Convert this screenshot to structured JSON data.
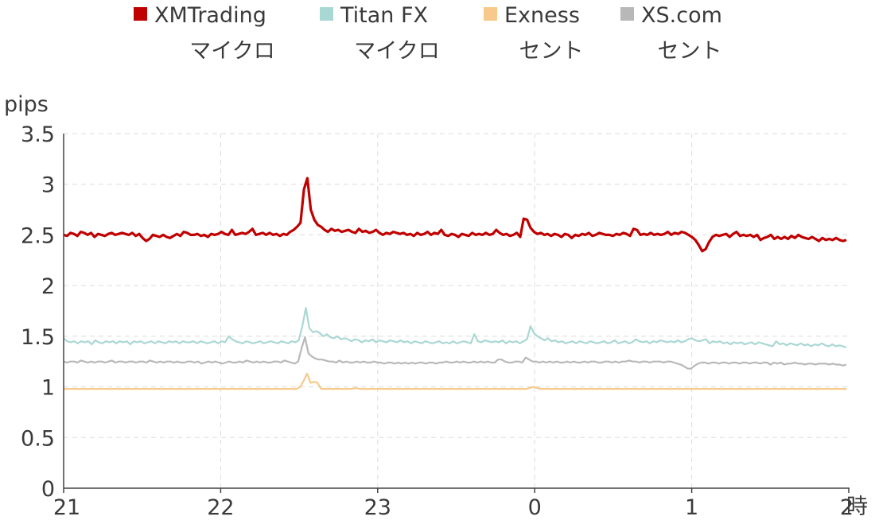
{
  "chart_data": {
    "type": "line",
    "ylabel": "pips",
    "xunit": "時",
    "ylim": [
      0,
      3.5
    ],
    "yticks": [
      "0",
      "0.5",
      "1",
      "1.5",
      "2",
      "2.5",
      "3",
      "3.5"
    ],
    "xticks": [
      "21",
      "22",
      "23",
      "0",
      "1",
      "2"
    ],
    "legend_position": "top",
    "grid": true,
    "series": [
      {
        "name": [
          "XMTrading",
          "マイクロ"
        ],
        "color": "#c00000",
        "values": [
          2.5,
          2.49,
          2.52,
          2.51,
          2.49,
          2.53,
          2.52,
          2.5,
          2.52,
          2.48,
          2.51,
          2.5,
          2.49,
          2.51,
          2.52,
          2.5,
          2.51,
          2.52,
          2.51,
          2.5,
          2.52,
          2.49,
          2.51,
          2.47,
          2.44,
          2.46,
          2.5,
          2.49,
          2.48,
          2.5,
          2.48,
          2.47,
          2.49,
          2.51,
          2.49,
          2.53,
          2.52,
          2.5,
          2.5,
          2.51,
          2.49,
          2.5,
          2.48,
          2.51,
          2.5,
          2.51,
          2.53,
          2.51,
          2.5,
          2.55,
          2.5,
          2.51,
          2.52,
          2.51,
          2.53,
          2.56,
          2.5,
          2.51,
          2.52,
          2.5,
          2.52,
          2.5,
          2.51,
          2.49,
          2.51,
          2.5,
          2.53,
          2.55,
          2.58,
          2.62,
          2.95,
          3.06,
          2.75,
          2.65,
          2.6,
          2.58,
          2.55,
          2.53,
          2.56,
          2.54,
          2.55,
          2.53,
          2.54,
          2.55,
          2.53,
          2.52,
          2.56,
          2.53,
          2.54,
          2.52,
          2.53,
          2.55,
          2.52,
          2.5,
          2.52,
          2.51,
          2.53,
          2.52,
          2.51,
          2.52,
          2.5,
          2.51,
          2.49,
          2.52,
          2.5,
          2.51,
          2.53,
          2.5,
          2.52,
          2.51,
          2.55,
          2.5,
          2.49,
          2.51,
          2.5,
          2.48,
          2.51,
          2.5,
          2.49,
          2.52,
          2.5,
          2.51,
          2.5,
          2.52,
          2.5,
          2.51,
          2.55,
          2.52,
          2.5,
          2.51,
          2.49,
          2.5,
          2.52,
          2.48,
          2.66,
          2.65,
          2.57,
          2.53,
          2.51,
          2.52,
          2.5,
          2.51,
          2.49,
          2.51,
          2.5,
          2.48,
          2.51,
          2.5,
          2.47,
          2.5,
          2.49,
          2.51,
          2.5,
          2.52,
          2.49,
          2.5,
          2.52,
          2.51,
          2.5,
          2.5,
          2.49,
          2.51,
          2.5,
          2.52,
          2.51,
          2.49,
          2.56,
          2.55,
          2.5,
          2.51,
          2.5,
          2.52,
          2.5,
          2.51,
          2.5,
          2.51,
          2.53,
          2.5,
          2.52,
          2.51,
          2.53,
          2.52,
          2.5,
          2.48,
          2.45,
          2.4,
          2.34,
          2.36,
          2.43,
          2.48,
          2.5,
          2.49,
          2.5,
          2.51,
          2.48,
          2.51,
          2.53,
          2.49,
          2.5,
          2.49,
          2.5,
          2.48,
          2.5,
          2.45,
          2.47,
          2.48,
          2.5,
          2.46,
          2.48,
          2.46,
          2.48,
          2.46,
          2.49,
          2.47,
          2.5,
          2.48,
          2.47,
          2.46,
          2.48,
          2.46,
          2.44,
          2.47,
          2.45,
          2.46,
          2.45,
          2.47,
          2.45,
          2.44,
          2.45
        ]
      },
      {
        "name": [
          "Titan FX",
          "マイクロ"
        ],
        "color": "#a9d8d4",
        "values": [
          1.48,
          1.45,
          1.44,
          1.45,
          1.43,
          1.45,
          1.44,
          1.45,
          1.42,
          1.46,
          1.44,
          1.43,
          1.45,
          1.44,
          1.45,
          1.43,
          1.45,
          1.44,
          1.45,
          1.42,
          1.45,
          1.44,
          1.45,
          1.43,
          1.44,
          1.45,
          1.43,
          1.45,
          1.44,
          1.43,
          1.45,
          1.44,
          1.45,
          1.43,
          1.45,
          1.44,
          1.44,
          1.45,
          1.43,
          1.45,
          1.44,
          1.43,
          1.44,
          1.45,
          1.43,
          1.45,
          1.44,
          1.5,
          1.47,
          1.45,
          1.44,
          1.43,
          1.45,
          1.44,
          1.43,
          1.44,
          1.45,
          1.43,
          1.44,
          1.45,
          1.44,
          1.43,
          1.45,
          1.44,
          1.43,
          1.45,
          1.44,
          1.46,
          1.6,
          1.78,
          1.58,
          1.54,
          1.55,
          1.53,
          1.5,
          1.52,
          1.49,
          1.48,
          1.5,
          1.47,
          1.48,
          1.47,
          1.45,
          1.47,
          1.46,
          1.44,
          1.46,
          1.45,
          1.47,
          1.44,
          1.46,
          1.45,
          1.44,
          1.46,
          1.45,
          1.44,
          1.46,
          1.44,
          1.45,
          1.43,
          1.45,
          1.44,
          1.43,
          1.45,
          1.44,
          1.43,
          1.44,
          1.45,
          1.43,
          1.44,
          1.43,
          1.45,
          1.43,
          1.44,
          1.45,
          1.44,
          1.43,
          1.52,
          1.45,
          1.44,
          1.46,
          1.45,
          1.44,
          1.45,
          1.44,
          1.46,
          1.43,
          1.45,
          1.44,
          1.45,
          1.43,
          1.45,
          1.47,
          1.6,
          1.53,
          1.5,
          1.48,
          1.46,
          1.48,
          1.45,
          1.46,
          1.44,
          1.45,
          1.43,
          1.44,
          1.45,
          1.43,
          1.45,
          1.44,
          1.43,
          1.45,
          1.44,
          1.43,
          1.44,
          1.45,
          1.43,
          1.44,
          1.46,
          1.43,
          1.44,
          1.45,
          1.43,
          1.44,
          1.47,
          1.45,
          1.44,
          1.45,
          1.43,
          1.45,
          1.44,
          1.46,
          1.45,
          1.44,
          1.45,
          1.44,
          1.46,
          1.44,
          1.45,
          1.47,
          1.48,
          1.46,
          1.45,
          1.46,
          1.47,
          1.43,
          1.45,
          1.44,
          1.45,
          1.43,
          1.44,
          1.42,
          1.44,
          1.43,
          1.44,
          1.42,
          1.43,
          1.44,
          1.42,
          1.44,
          1.43,
          1.42,
          1.41,
          1.4,
          1.45,
          1.42,
          1.43,
          1.41,
          1.43,
          1.42,
          1.41,
          1.43,
          1.41,
          1.42,
          1.4,
          1.42,
          1.41,
          1.43,
          1.41,
          1.4,
          1.42,
          1.4,
          1.41,
          1.4,
          1.39
        ]
      },
      {
        "name": [
          "Exness",
          "セント"
        ],
        "color": "#f7c98a",
        "values": [
          0.98,
          0.98,
          0.98,
          0.98,
          0.98,
          0.98,
          0.98,
          0.98,
          0.98,
          0.98,
          0.98,
          0.98,
          0.98,
          0.98,
          0.98,
          0.98,
          0.98,
          0.98,
          0.98,
          0.98,
          0.98,
          0.98,
          0.98,
          0.98,
          0.98,
          0.98,
          0.98,
          0.98,
          0.98,
          0.98,
          0.98,
          0.98,
          0.98,
          0.98,
          0.98,
          0.98,
          0.98,
          0.98,
          0.98,
          0.98,
          0.98,
          0.98,
          0.98,
          0.98,
          0.98,
          0.98,
          0.98,
          0.98,
          0.98,
          0.98,
          0.98,
          0.98,
          0.98,
          0.98,
          0.98,
          0.98,
          0.98,
          0.98,
          0.98,
          0.98,
          0.98,
          0.98,
          0.98,
          0.98,
          0.98,
          0.98,
          0.98,
          0.98,
          1.0,
          1.06,
          1.13,
          1.04,
          1.05,
          1.04,
          0.98,
          0.98,
          0.98,
          0.98,
          0.98,
          0.98,
          0.98,
          0.98,
          0.98,
          0.98,
          0.99,
          0.98,
          0.98,
          0.98,
          0.98,
          0.98,
          0.98,
          0.98,
          0.98,
          0.98,
          0.98,
          0.98,
          0.98,
          0.98,
          0.98,
          0.98,
          0.98,
          0.98,
          0.98,
          0.98,
          0.98,
          0.98,
          0.98,
          0.98,
          0.98,
          0.98,
          0.98,
          0.98,
          0.98,
          0.98,
          0.98,
          0.98,
          0.98,
          0.98,
          0.98,
          0.98,
          0.98,
          0.98,
          0.98,
          0.98,
          0.98,
          0.98,
          0.98,
          0.98,
          0.98,
          0.98,
          0.98,
          0.98,
          0.98,
          0.98,
          0.99,
          1.0,
          0.99,
          0.98,
          0.98,
          0.98,
          0.98,
          0.98,
          0.98,
          0.98,
          0.98,
          0.98,
          0.98,
          0.98,
          0.98,
          0.98,
          0.98,
          0.98,
          0.98,
          0.98,
          0.98,
          0.98,
          0.98,
          0.98,
          0.98,
          0.98,
          0.98,
          0.98,
          0.98,
          0.98,
          0.98,
          0.98,
          0.98,
          0.98,
          0.98,
          0.98,
          0.98,
          0.98,
          0.98,
          0.98,
          0.98,
          0.98,
          0.98,
          0.98,
          0.98,
          0.98,
          0.98,
          0.98,
          0.98,
          0.98,
          0.98,
          0.98,
          0.98,
          0.98,
          0.98,
          0.98,
          0.98,
          0.98,
          0.98,
          0.98,
          0.98,
          0.98,
          0.98,
          0.98,
          0.98,
          0.98,
          0.98,
          0.98,
          0.98,
          0.98,
          0.98,
          0.98,
          0.98,
          0.98,
          0.98,
          0.98,
          0.98,
          0.98,
          0.98,
          0.98,
          0.98,
          0.98,
          0.98,
          0.98,
          0.98,
          0.98,
          0.98,
          0.98,
          0.98,
          0.98,
          0.98,
          0.98
        ]
      },
      {
        "name": [
          "XS.com",
          "セント"
        ],
        "color": "#b8b8b8",
        "values": [
          1.25,
          1.24,
          1.25,
          1.25,
          1.24,
          1.26,
          1.25,
          1.24,
          1.25,
          1.24,
          1.25,
          1.25,
          1.24,
          1.25,
          1.26,
          1.24,
          1.25,
          1.25,
          1.24,
          1.25,
          1.25,
          1.24,
          1.25,
          1.25,
          1.24,
          1.26,
          1.25,
          1.24,
          1.25,
          1.24,
          1.25,
          1.25,
          1.24,
          1.25,
          1.24,
          1.24,
          1.25,
          1.25,
          1.24,
          1.25,
          1.23,
          1.24,
          1.25,
          1.24,
          1.25,
          1.24,
          1.23,
          1.24,
          1.25,
          1.24,
          1.24,
          1.25,
          1.24,
          1.26,
          1.25,
          1.24,
          1.25,
          1.24,
          1.25,
          1.24,
          1.24,
          1.25,
          1.25,
          1.24,
          1.26,
          1.25,
          1.24,
          1.23,
          1.25,
          1.38,
          1.49,
          1.33,
          1.3,
          1.28,
          1.27,
          1.27,
          1.26,
          1.25,
          1.25,
          1.24,
          1.26,
          1.24,
          1.25,
          1.24,
          1.24,
          1.25,
          1.24,
          1.25,
          1.24,
          1.24,
          1.25,
          1.24,
          1.24,
          1.23,
          1.24,
          1.24,
          1.23,
          1.24,
          1.23,
          1.24,
          1.23,
          1.24,
          1.23,
          1.24,
          1.24,
          1.23,
          1.24,
          1.24,
          1.23,
          1.24,
          1.24,
          1.25,
          1.24,
          1.24,
          1.25,
          1.24,
          1.25,
          1.24,
          1.24,
          1.25,
          1.24,
          1.25,
          1.24,
          1.25,
          1.24,
          1.24,
          1.27,
          1.27,
          1.25,
          1.24,
          1.24,
          1.25,
          1.25,
          1.24,
          1.29,
          1.27,
          1.25,
          1.25,
          1.24,
          1.25,
          1.24,
          1.25,
          1.24,
          1.25,
          1.24,
          1.24,
          1.25,
          1.24,
          1.25,
          1.24,
          1.24,
          1.25,
          1.24,
          1.25,
          1.25,
          1.24,
          1.24,
          1.25,
          1.25,
          1.24,
          1.25,
          1.24,
          1.25,
          1.25,
          1.26,
          1.25,
          1.25,
          1.24,
          1.25,
          1.25,
          1.24,
          1.25,
          1.25,
          1.25,
          1.24,
          1.25,
          1.25,
          1.24,
          1.23,
          1.22,
          1.2,
          1.18,
          1.18,
          1.21,
          1.23,
          1.24,
          1.24,
          1.23,
          1.24,
          1.24,
          1.23,
          1.24,
          1.24,
          1.23,
          1.24,
          1.24,
          1.23,
          1.24,
          1.24,
          1.23,
          1.24,
          1.24,
          1.23,
          1.24,
          1.24,
          1.22,
          1.24,
          1.23,
          1.24,
          1.22,
          1.23,
          1.23,
          1.24,
          1.23,
          1.23,
          1.22,
          1.23,
          1.23,
          1.22,
          1.23,
          1.23,
          1.23,
          1.22,
          1.23,
          1.22,
          1.22,
          1.21,
          1.22
        ]
      }
    ]
  }
}
